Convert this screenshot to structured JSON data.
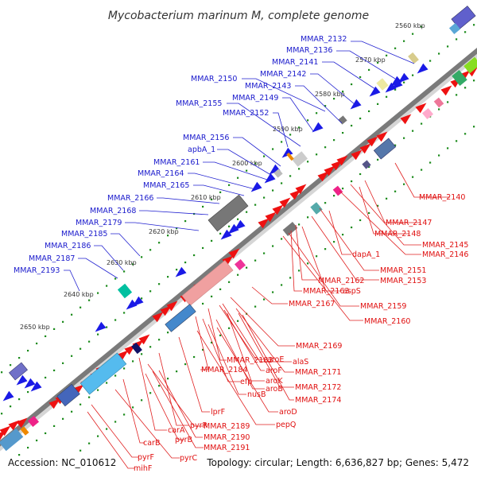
{
  "title": "Mycobacterium marinum M, complete genome",
  "footer": {
    "accession": "Accession: NC_010612",
    "summary": "Topology: circular; Length: 6,636,827 bp; Genes: 5,472"
  },
  "colors": {
    "upper_label": "#1a1acc",
    "lower_label": "#e01010",
    "backbone": "#888888",
    "tick_dot": "#1a8a1a"
  },
  "scale_ticks": [
    "2560 kbp",
    "2570 kbp",
    "2580 kbp",
    "2590 kbp",
    "2600 kbp",
    "2610 kbp",
    "2620 kbp",
    "2630 kbp",
    "2640 kbp",
    "2650 kbp"
  ],
  "upper_labels": [
    "MMAR_2132",
    "MMAR_2136",
    "MMAR_2141",
    "MMAR_2142",
    "MMAR_2150",
    "MMAR_2143",
    "MMAR_2149",
    "MMAR_2155",
    "MMAR_2152",
    "MMAR_2156",
    "apbA_1",
    "MMAR_2161",
    "MMAR_2164",
    "MMAR_2165",
    "MMAR_2166",
    "MMAR_2168",
    "MMAR_2179",
    "MMAR_2185",
    "MMAR_2186",
    "MMAR_2187",
    "MMAR_2193"
  ],
  "lower_labels": [
    "MMAR_2140",
    "MMAR_2147",
    "MMAR_2148",
    "MMAR_2145",
    "MMAR_2146",
    "dapA_1",
    "MMAR_2151",
    "MMAR_2153",
    "MMAR_2162",
    "MMAR_2163",
    "aspS",
    "MMAR_2167",
    "MMAR_2159",
    "MMAR_2160",
    "MMAR_2169",
    "alaS",
    "MMAR_2183",
    "aroE",
    "MMAR_2184",
    "aroF",
    "MMAR_2171",
    "aroK",
    "efp",
    "aroB",
    "MMAR_2172",
    "nusB",
    "MMAR_2174",
    "aroD",
    "lprF",
    "pepQ",
    "carA",
    "pyrR",
    "MMAR_2189",
    "carB",
    "pyrB",
    "MMAR_2190",
    "pyrF",
    "pyrC",
    "MMAR_2191",
    "mihF"
  ]
}
